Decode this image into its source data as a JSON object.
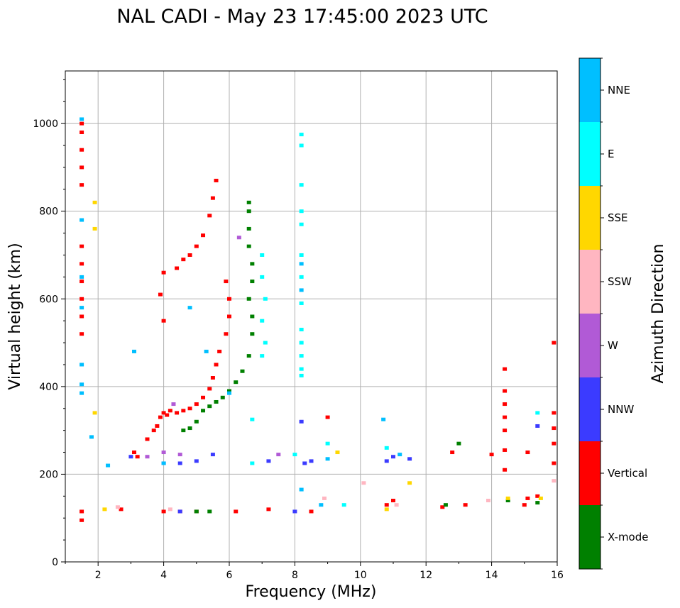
{
  "chart_data": {
    "type": "scatter",
    "title": "NAL CADI - May 23 17:45:00 2023 UTC",
    "xlabel": "Frequency (MHz)",
    "ylabel": "Virtual height (km)",
    "xlim": [
      1,
      16
    ],
    "ylim": [
      0,
      1120
    ],
    "xticks": [
      2,
      4,
      6,
      8,
      10,
      12,
      14,
      16
    ],
    "yticks": [
      0,
      200,
      400,
      600,
      800,
      1000
    ],
    "grid": true,
    "colorbar": {
      "label": "Azimuth Direction",
      "categories": [
        {
          "name": "X-mode",
          "color": "#008000"
        },
        {
          "name": "Vertical",
          "color": "#ff0000"
        },
        {
          "name": "NNW",
          "color": "#3b3bff"
        },
        {
          "name": "W",
          "color": "#b15ad6"
        },
        {
          "name": "SSW",
          "color": "#ffb6c1"
        },
        {
          "name": "SSE",
          "color": "#ffd700"
        },
        {
          "name": "E",
          "color": "#00ffff"
        },
        {
          "name": "NNE",
          "color": "#00bfff"
        }
      ]
    },
    "series": [
      {
        "name": "Vertical",
        "points": [
          [
            1.5,
            1000
          ],
          [
            1.5,
            980
          ],
          [
            1.5,
            940
          ],
          [
            1.5,
            900
          ],
          [
            1.5,
            860
          ],
          [
            1.5,
            720
          ],
          [
            1.5,
            680
          ],
          [
            1.5,
            640
          ],
          [
            1.5,
            600
          ],
          [
            1.5,
            560
          ],
          [
            1.5,
            520
          ],
          [
            1.5,
            115
          ],
          [
            1.5,
            95
          ],
          [
            2.7,
            120
          ],
          [
            3.1,
            250
          ],
          [
            3.2,
            240
          ],
          [
            3.5,
            280
          ],
          [
            3.7,
            300
          ],
          [
            3.8,
            310
          ],
          [
            3.9,
            330
          ],
          [
            4.0,
            340
          ],
          [
            4.1,
            335
          ],
          [
            4.2,
            345
          ],
          [
            4.4,
            340
          ],
          [
            4.6,
            345
          ],
          [
            4.8,
            350
          ],
          [
            5.0,
            360
          ],
          [
            5.2,
            375
          ],
          [
            5.4,
            395
          ],
          [
            5.5,
            420
          ],
          [
            5.6,
            450
          ],
          [
            5.7,
            480
          ],
          [
            5.9,
            520
          ],
          [
            6.0,
            560
          ],
          [
            6.0,
            600
          ],
          [
            5.9,
            640
          ],
          [
            4.0,
            660
          ],
          [
            4.4,
            670
          ],
          [
            4.6,
            690
          ],
          [
            4.8,
            700
          ],
          [
            5.0,
            720
          ],
          [
            5.2,
            745
          ],
          [
            5.4,
            790
          ],
          [
            5.5,
            830
          ],
          [
            5.6,
            870
          ],
          [
            4.0,
            550
          ],
          [
            3.9,
            610
          ],
          [
            4.0,
            115
          ],
          [
            4.5,
            115
          ],
          [
            5.0,
            115
          ],
          [
            6.2,
            115
          ],
          [
            7.2,
            120
          ],
          [
            8.5,
            115
          ],
          [
            9.0,
            330
          ],
          [
            10.8,
            130
          ],
          [
            11.0,
            140
          ],
          [
            12.5,
            125
          ],
          [
            12.8,
            250
          ],
          [
            13.2,
            130
          ],
          [
            14.4,
            440
          ],
          [
            14.4,
            390
          ],
          [
            14.4,
            360
          ],
          [
            14.4,
            330
          ],
          [
            14.4,
            300
          ],
          [
            14.4,
            255
          ],
          [
            14.4,
            210
          ],
          [
            15.0,
            130
          ],
          [
            15.1,
            145
          ],
          [
            15.1,
            250
          ],
          [
            15.4,
            150
          ],
          [
            15.9,
            500
          ],
          [
            15.9,
            340
          ],
          [
            15.9,
            305
          ],
          [
            15.9,
            270
          ],
          [
            15.9,
            225
          ],
          [
            14.0,
            245
          ]
        ]
      },
      {
        "name": "X-mode",
        "points": [
          [
            4.6,
            300
          ],
          [
            4.8,
            305
          ],
          [
            5.0,
            320
          ],
          [
            5.2,
            345
          ],
          [
            5.4,
            355
          ],
          [
            5.6,
            365
          ],
          [
            5.8,
            375
          ],
          [
            6.0,
            390
          ],
          [
            6.2,
            410
          ],
          [
            6.4,
            435
          ],
          [
            6.6,
            470
          ],
          [
            6.7,
            520
          ],
          [
            6.7,
            560
          ],
          [
            6.6,
            600
          ],
          [
            6.7,
            640
          ],
          [
            6.7,
            680
          ],
          [
            6.6,
            720
          ],
          [
            6.6,
            760
          ],
          [
            6.6,
            800
          ],
          [
            6.6,
            820
          ],
          [
            5.0,
            115
          ],
          [
            5.4,
            115
          ],
          [
            12.6,
            130
          ],
          [
            13.0,
            270
          ],
          [
            14.5,
            140
          ],
          [
            15.4,
            135
          ]
        ]
      },
      {
        "name": "NNW",
        "points": [
          [
            3.0,
            240
          ],
          [
            4.0,
            225
          ],
          [
            4.5,
            225
          ],
          [
            5.0,
            230
          ],
          [
            5.5,
            245
          ],
          [
            7.2,
            230
          ],
          [
            8.3,
            225
          ],
          [
            8.5,
            230
          ],
          [
            8.2,
            320
          ],
          [
            10.8,
            230
          ],
          [
            11.0,
            240
          ],
          [
            11.5,
            235
          ],
          [
            15.4,
            310
          ],
          [
            4.5,
            115
          ],
          [
            8.0,
            115
          ]
        ]
      },
      {
        "name": "W",
        "points": [
          [
            3.5,
            240
          ],
          [
            4.0,
            250
          ],
          [
            4.5,
            245
          ],
          [
            6.3,
            740
          ],
          [
            7.5,
            245
          ],
          [
            4.3,
            360
          ]
        ]
      },
      {
        "name": "SSW",
        "points": [
          [
            2.6,
            125
          ],
          [
            4.2,
            120
          ],
          [
            8.9,
            145
          ],
          [
            10.1,
            180
          ],
          [
            11.1,
            130
          ],
          [
            13.9,
            140
          ],
          [
            15.9,
            185
          ]
        ]
      },
      {
        "name": "SSE",
        "points": [
          [
            1.9,
            820
          ],
          [
            1.9,
            760
          ],
          [
            1.9,
            340
          ],
          [
            2.2,
            120
          ],
          [
            9.3,
            250
          ],
          [
            10.8,
            120
          ],
          [
            11.5,
            180
          ],
          [
            14.5,
            145
          ],
          [
            15.5,
            145
          ]
        ]
      },
      {
        "name": "E",
        "points": [
          [
            7.0,
            700
          ],
          [
            7.0,
            650
          ],
          [
            7.1,
            600
          ],
          [
            7.0,
            550
          ],
          [
            7.1,
            500
          ],
          [
            7.0,
            470
          ],
          [
            8.2,
            975
          ],
          [
            8.2,
            950
          ],
          [
            8.2,
            860
          ],
          [
            8.2,
            800
          ],
          [
            8.2,
            770
          ],
          [
            8.2,
            700
          ],
          [
            8.2,
            650
          ],
          [
            8.2,
            590
          ],
          [
            8.2,
            530
          ],
          [
            8.2,
            500
          ],
          [
            8.2,
            470
          ],
          [
            8.2,
            440
          ],
          [
            8.2,
            425
          ],
          [
            6.7,
            325
          ],
          [
            6.7,
            225
          ],
          [
            8.0,
            245
          ],
          [
            9.0,
            270
          ],
          [
            9.5,
            130
          ],
          [
            10.8,
            260
          ],
          [
            15.4,
            340
          ]
        ]
      },
      {
        "name": "NNE",
        "points": [
          [
            1.5,
            1010
          ],
          [
            1.5,
            780
          ],
          [
            1.5,
            650
          ],
          [
            1.5,
            580
          ],
          [
            1.5,
            450
          ],
          [
            1.5,
            405
          ],
          [
            1.5,
            385
          ],
          [
            2.3,
            220
          ],
          [
            3.1,
            480
          ],
          [
            4.8,
            580
          ],
          [
            4.0,
            225
          ],
          [
            5.3,
            480
          ],
          [
            6.0,
            385
          ],
          [
            8.2,
            680
          ],
          [
            8.2,
            620
          ],
          [
            8.2,
            165
          ],
          [
            8.8,
            130
          ],
          [
            9.0,
            235
          ],
          [
            10.7,
            325
          ],
          [
            11.2,
            245
          ],
          [
            1.8,
            285
          ]
        ]
      }
    ]
  }
}
